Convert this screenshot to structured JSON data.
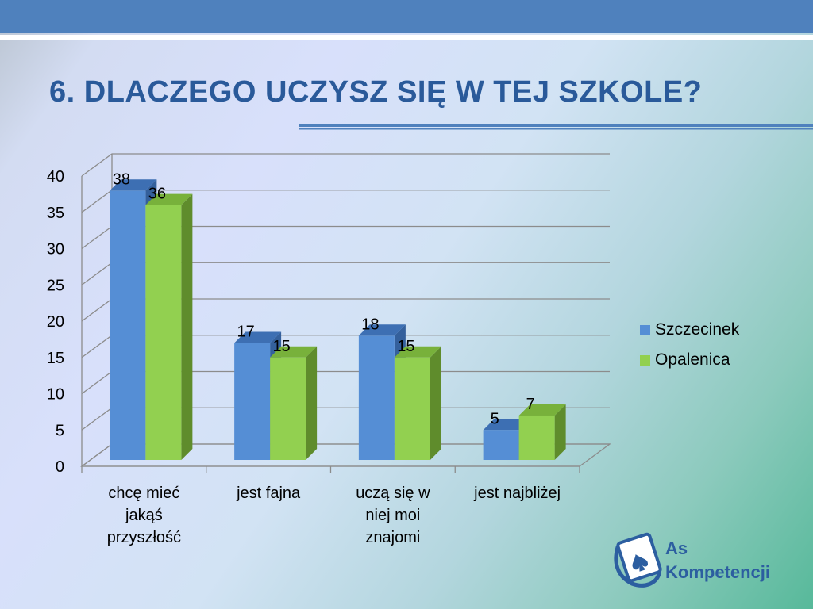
{
  "slide": {
    "title": "6. DLACZEGO UCZYSZ SIĘ W TEJ SZKOLE?",
    "logo_line1": "As",
    "logo_line2": "Kompetencji",
    "accent_color": "#4f81bd"
  },
  "chart_data": {
    "type": "bar",
    "title": "",
    "xlabel": "",
    "ylabel": "",
    "ylim": [
      0,
      40
    ],
    "yticks": [
      0,
      5,
      10,
      15,
      20,
      25,
      30,
      35,
      40
    ],
    "grid": true,
    "legend": "right",
    "categories": [
      [
        "chcę mieć",
        "jakąś",
        "przyszłość"
      ],
      [
        "jest fajna"
      ],
      [
        "uczą się w",
        "niej moi",
        "znajomi"
      ],
      [
        "jest najbliżej"
      ]
    ],
    "series": [
      {
        "name": "Szczecinek",
        "values": [
          38,
          17,
          18,
          5
        ],
        "color": "#558ed5"
      },
      {
        "name": "Opalenica",
        "values": [
          36,
          15,
          15,
          7
        ],
        "color": "#92d050"
      }
    ]
  }
}
